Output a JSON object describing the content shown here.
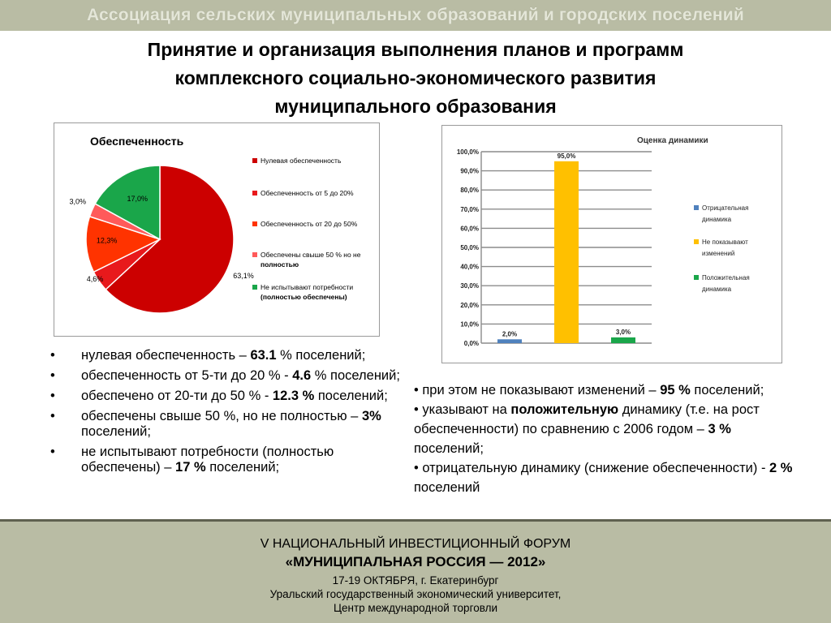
{
  "header": {
    "banner": "Ассоциация сельских муниципальных образований и городских поселений"
  },
  "title": [
    "Принятие и организация выполнения планов и программ",
    "комплексного социально-экономического развития",
    "муниципального образования"
  ],
  "chart_data": [
    {
      "type": "pie",
      "title": "Обеспеченность",
      "legend_position": "right",
      "slices": [
        {
          "label": "Нулевая обеспеченность",
          "value": 63.1,
          "value_label": "63,1%",
          "color": "#cc0000"
        },
        {
          "label": "Обеспеченность от 5 до 20%",
          "value": 4.6,
          "value_label": "4,6%",
          "color": "#e8191c"
        },
        {
          "label": "Обеспеченность от 20 до 50%",
          "value": 12.3,
          "value_label": "12,3%",
          "color": "#ff3300"
        },
        {
          "label": "Обеспечены свыше 50 % но не",
          "label_bold": "полностью",
          "value": 3.0,
          "value_label": "3,0%",
          "color": "#ff5a5a"
        },
        {
          "label": "Не испытывают потребности",
          "label_bold": "(полностью обеспечены)",
          "value": 17.0,
          "value_label": "17,0%",
          "color": "#1aa64a"
        }
      ]
    },
    {
      "type": "bar",
      "title": "Оценка динамики",
      "ylim": [
        0,
        100
      ],
      "yticks": [
        "0,0%",
        "10,0%",
        "20,0%",
        "30,0%",
        "40,0%",
        "50,0%",
        "60,0%",
        "70,0%",
        "80,0%",
        "90,0%",
        "100,0%"
      ],
      "grid": true,
      "legend_position": "right",
      "series": [
        {
          "name": "Отрицательная динамика",
          "value": 2.0,
          "value_label": "2,0%",
          "color": "#4f81bd"
        },
        {
          "name": "Не показывают изменений",
          "value": 95.0,
          "value_label": "95,0%",
          "color": "#ffc000"
        },
        {
          "name": "Положительная динамика",
          "value": 3.0,
          "value_label": "3,0%",
          "color": "#1aa64a"
        }
      ]
    }
  ],
  "left_bullets": [
    {
      "bullet": "•",
      "pre": "нулевая обеспеченность –  ",
      "bold": "63.1",
      "post": " % поселений;"
    },
    {
      "bullet": "•",
      "pre": "обеспеченность от 5-ти до 20 %  - ",
      "bold": "4.6",
      "post": " % поселений;"
    },
    {
      "bullet": "•",
      "pre": "обеспечено от 20-ти до 50 % - ",
      "bold": "12.3 %",
      "post": " поселений;"
    },
    {
      "bullet": "•",
      "pre": "обеспечены свыше 50 %, но не полностью – ",
      "bold": "3%",
      "post": " поселений;"
    },
    {
      "bullet": "•",
      "pre": "не испытывают потребности (полностью обеспечены) –  ",
      "bold": "17 %",
      "post": " поселений;"
    }
  ],
  "right_bullets": [
    {
      "pre": "•  при этом не показывают изменений – ",
      "bold": "95 %",
      "post": " поселений;"
    },
    {
      "pre": "• указывают на ",
      "bold": "положительную",
      "post": " динамику (т.е. на рост обеспеченности) по сравнению с 2006 годом – ",
      "bold2": "3 %",
      "post2": " поселений;"
    },
    {
      "pre": "•  отрицательную динамику  (снижение обеспеченности) -  ",
      "bold": "2 %",
      "post": "  поселений"
    }
  ],
  "footer": {
    "line1": "V НАЦИОНАЛЬНЫЙ ИНВЕСТИЦИОННЫЙ ФОРУМ",
    "line2": "«МУНИЦИПАЛЬНАЯ РОССИЯ — 2012»",
    "line3": "17-19 ОКТЯБРЯ, г. Екатеринбург",
    "line4": "Уральский государственный экономический университет,",
    "line5": "Центр международной торговли"
  }
}
